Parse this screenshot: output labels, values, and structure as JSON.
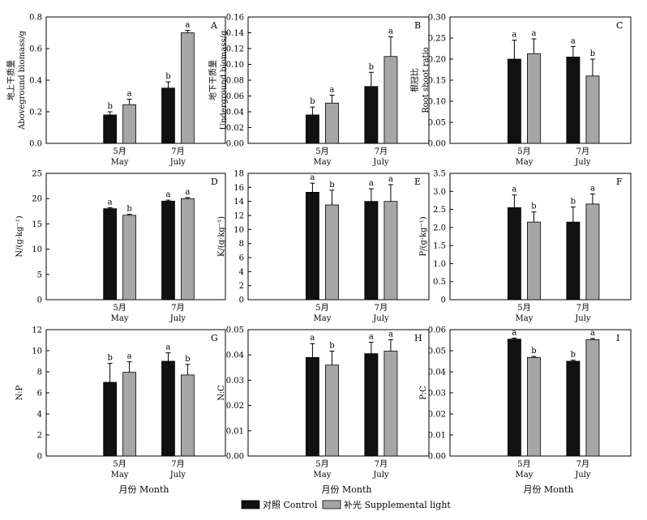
{
  "legend": {
    "items": [
      {
        "label": "对照 Control",
        "color": "#111111"
      },
      {
        "label": "补光 Supplemental light",
        "color": "#a6a6a6"
      }
    ]
  },
  "chart_data": [
    {
      "type": "bar",
      "panel": "A",
      "ylabel_cn": "地上干质量",
      "ylabel": "Aboveground biomass/g",
      "ylim": [
        0,
        0.8
      ],
      "yticks": [
        "0.0",
        "0.2",
        "0.4",
        "0.6",
        "0.8"
      ],
      "categories": [
        {
          "cn": "5月",
          "en": "May"
        },
        {
          "cn": "7月",
          "en": "July"
        }
      ],
      "xtitle": "",
      "series": [
        {
          "name": "对照 Control",
          "values": [
            0.18,
            0.35
          ],
          "errors": [
            0.02,
            0.04
          ],
          "letters": [
            "b",
            "b"
          ]
        },
        {
          "name": "补光 Supplemental light",
          "values": [
            0.245,
            0.7
          ],
          "errors": [
            0.035,
            0.015
          ],
          "letters": [
            "a",
            "a"
          ]
        }
      ]
    },
    {
      "type": "bar",
      "panel": "B",
      "ylabel_cn": "地下干质量",
      "ylabel": "Underground biomass/g",
      "ylim": [
        0,
        0.16
      ],
      "yticks": [
        "0.00",
        "0.02",
        "0.04",
        "0.06",
        "0.08",
        "0.10",
        "0.12",
        "0.14",
        "0.16"
      ],
      "categories": [
        {
          "cn": "5月",
          "en": "May"
        },
        {
          "cn": "7月",
          "en": "July"
        }
      ],
      "xtitle": "",
      "series": [
        {
          "name": "对照 Control",
          "values": [
            0.036,
            0.072
          ],
          "errors": [
            0.01,
            0.018
          ],
          "letters": [
            "b",
            "b"
          ]
        },
        {
          "name": "补光 Supplemental light",
          "values": [
            0.051,
            0.11
          ],
          "errors": [
            0.01,
            0.025
          ],
          "letters": [
            "a",
            "a"
          ]
        }
      ]
    },
    {
      "type": "bar",
      "panel": "C",
      "ylabel_cn": "根冠比",
      "ylabel": "Root shoot ratio",
      "ylim": [
        0,
        0.3
      ],
      "yticks": [
        "0.00",
        "0.05",
        "0.10",
        "0.15",
        "0.20",
        "0.25",
        "0.30"
      ],
      "categories": [
        {
          "cn": "5月",
          "en": "May"
        },
        {
          "cn": "7月",
          "en": "July"
        }
      ],
      "xtitle": "",
      "series": [
        {
          "name": "对照 Control",
          "values": [
            0.2,
            0.205
          ],
          "errors": [
            0.045,
            0.025
          ],
          "letters": [
            "a",
            "a"
          ]
        },
        {
          "name": "补光 Supplemental light",
          "values": [
            0.213,
            0.16
          ],
          "errors": [
            0.035,
            0.04
          ],
          "letters": [
            "a",
            "b"
          ]
        }
      ]
    },
    {
      "type": "bar",
      "panel": "D",
      "ylabel_cn": "",
      "ylabel": "N/(g·kg⁻¹)",
      "ylim": [
        0,
        25
      ],
      "yticks": [
        "0",
        "5",
        "10",
        "15",
        "20",
        "25"
      ],
      "categories": [
        {
          "cn": "5月",
          "en": "May"
        },
        {
          "cn": "7月",
          "en": "July"
        }
      ],
      "xtitle": "",
      "series": [
        {
          "name": "对照 Control",
          "values": [
            18.0,
            19.5
          ],
          "errors": [
            0.2,
            0.2
          ],
          "letters": [
            "a",
            "a"
          ]
        },
        {
          "name": "补光 Supplemental light",
          "values": [
            16.7,
            20.0
          ],
          "errors": [
            0.2,
            0.2
          ],
          "letters": [
            "b",
            "a"
          ]
        }
      ]
    },
    {
      "type": "bar",
      "panel": "E",
      "ylabel_cn": "",
      "ylabel": "K/(g·kg⁻¹)",
      "ylim": [
        0,
        18
      ],
      "yticks": [
        "0",
        "2",
        "4",
        "6",
        "8",
        "10",
        "12",
        "14",
        "16",
        "18"
      ],
      "categories": [
        {
          "cn": "5月",
          "en": "May"
        },
        {
          "cn": "7月",
          "en": "July"
        }
      ],
      "xtitle": "",
      "series": [
        {
          "name": "对照 Control",
          "values": [
            15.3,
            14.0
          ],
          "errors": [
            1.3,
            1.8
          ],
          "letters": [
            "a",
            "a"
          ]
        },
        {
          "name": "补光 Supplemental light",
          "values": [
            13.5,
            14.0
          ],
          "errors": [
            2.1,
            2.4
          ],
          "letters": [
            "b",
            "a"
          ]
        }
      ]
    },
    {
      "type": "bar",
      "panel": "F",
      "ylabel_cn": "",
      "ylabel": "P/(g·kg⁻¹)",
      "ylim": [
        0,
        3.5
      ],
      "yticks": [
        "0",
        "0.5",
        "1.0",
        "1.5",
        "2.0",
        "2.5",
        "3.0",
        "3.5"
      ],
      "categories": [
        {
          "cn": "5月",
          "en": "May"
        },
        {
          "cn": "7月",
          "en": "July"
        }
      ],
      "xtitle": "",
      "series": [
        {
          "name": "对照 Control",
          "values": [
            2.55,
            2.15
          ],
          "errors": [
            0.35,
            0.42
          ],
          "letters": [
            "a",
            "b"
          ]
        },
        {
          "name": "补光 Supplemental light",
          "values": [
            2.15,
            2.65
          ],
          "errors": [
            0.28,
            0.28
          ],
          "letters": [
            "b",
            "a"
          ]
        }
      ]
    },
    {
      "type": "bar",
      "panel": "G",
      "ylabel_cn": "",
      "ylabel": "N:P",
      "ylim": [
        0,
        12
      ],
      "yticks": [
        "0",
        "2",
        "4",
        "6",
        "8",
        "10",
        "12"
      ],
      "categories": [
        {
          "cn": "5月",
          "en": "May"
        },
        {
          "cn": "7月",
          "en": "July"
        }
      ],
      "xtitle": "月份 Month",
      "series": [
        {
          "name": "对照 Control",
          "values": [
            7.0,
            9.0
          ],
          "errors": [
            1.8,
            0.8
          ],
          "letters": [
            "b",
            "a"
          ]
        },
        {
          "name": "补光 Supplemental light",
          "values": [
            7.95,
            7.7
          ],
          "errors": [
            1.0,
            1.0
          ],
          "letters": [
            "a",
            "b"
          ]
        }
      ]
    },
    {
      "type": "bar",
      "panel": "H",
      "ylabel_cn": "",
      "ylabel": "N:C",
      "ylim": [
        0,
        0.05
      ],
      "yticks": [
        "0.00",
        "0.01",
        "0.02",
        "0.03",
        "0.04",
        "0.05"
      ],
      "categories": [
        {
          "cn": "5月",
          "en": "May"
        },
        {
          "cn": "7月",
          "en": "July"
        }
      ],
      "xtitle": "月份 Month",
      "series": [
        {
          "name": "对照 Control",
          "values": [
            0.039,
            0.0405
          ],
          "errors": [
            0.0055,
            0.0045
          ],
          "letters": [
            "a",
            "a"
          ]
        },
        {
          "name": "补光 Supplemental light",
          "values": [
            0.036,
            0.0415
          ],
          "errors": [
            0.0055,
            0.0045
          ],
          "letters": [
            "b",
            "a"
          ]
        }
      ]
    },
    {
      "type": "bar",
      "panel": "I",
      "ylabel_cn": "",
      "ylabel": "P:C",
      "ylim": [
        0,
        0.06
      ],
      "yticks": [
        "0.00",
        "0.01",
        "0.02",
        "0.03",
        "0.04",
        "0.05",
        "0.06"
      ],
      "categories": [
        {
          "cn": "5月",
          "en": "May"
        },
        {
          "cn": "7月",
          "en": "July"
        }
      ],
      "xtitle": "月份 Month",
      "series": [
        {
          "name": "对照 Control",
          "values": [
            0.0555,
            0.045
          ],
          "errors": [
            0.0005,
            0.0005
          ],
          "letters": [
            "a",
            "b"
          ]
        },
        {
          "name": "补光 Supplemental light",
          "values": [
            0.0468,
            0.0553
          ],
          "errors": [
            0.0005,
            0.0005
          ],
          "letters": [
            "b",
            "a"
          ]
        }
      ]
    }
  ]
}
